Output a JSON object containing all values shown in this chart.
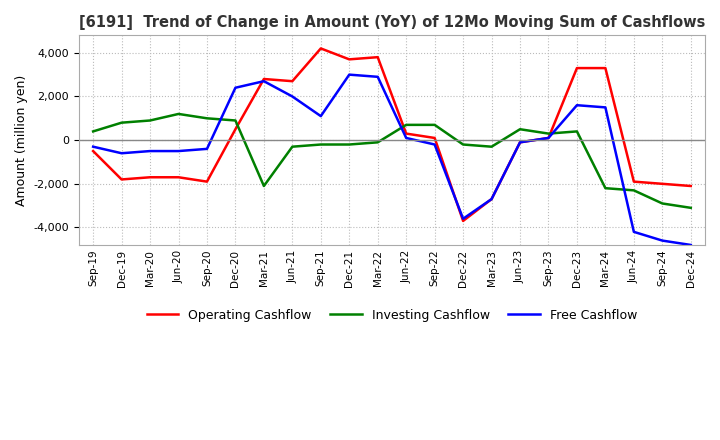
{
  "title": "[6191]  Trend of Change in Amount (YoY) of 12Mo Moving Sum of Cashflows",
  "ylabel": "Amount (million yen)",
  "ylim": [
    -4800,
    4800
  ],
  "yticks": [
    -4000,
    -2000,
    0,
    2000,
    4000
  ],
  "x_labels": [
    "Sep-19",
    "Dec-19",
    "Mar-20",
    "Jun-20",
    "Sep-20",
    "Dec-20",
    "Mar-21",
    "Jun-21",
    "Sep-21",
    "Dec-21",
    "Mar-22",
    "Jun-22",
    "Sep-22",
    "Dec-22",
    "Mar-23",
    "Jun-23",
    "Sep-23",
    "Dec-23",
    "Mar-24",
    "Jun-24",
    "Sep-24",
    "Dec-24"
  ],
  "operating": [
    -500,
    -1800,
    -1700,
    -1700,
    -1900,
    500,
    2800,
    2700,
    4200,
    3700,
    3800,
    300,
    100,
    -3700,
    -2700,
    -100,
    100,
    3300,
    3300,
    -1900,
    -2000,
    -2100
  ],
  "investing": [
    400,
    800,
    900,
    1200,
    1000,
    900,
    -2100,
    -300,
    -200,
    -200,
    -100,
    700,
    700,
    -200,
    -300,
    500,
    300,
    400,
    -2200,
    -2300,
    -2900,
    -3100
  ],
  "free": [
    -300,
    -600,
    -500,
    -500,
    -400,
    2400,
    2700,
    2000,
    1100,
    3000,
    2900,
    100,
    -200,
    -3600,
    -2700,
    -100,
    100,
    1600,
    1500,
    -4200,
    -4600,
    -4800
  ],
  "operating_color": "#FF0000",
  "investing_color": "#008000",
  "free_color": "#0000FF",
  "background_color": "#FFFFFF",
  "grid_color": "#BBBBBB",
  "title_color": "#333333"
}
